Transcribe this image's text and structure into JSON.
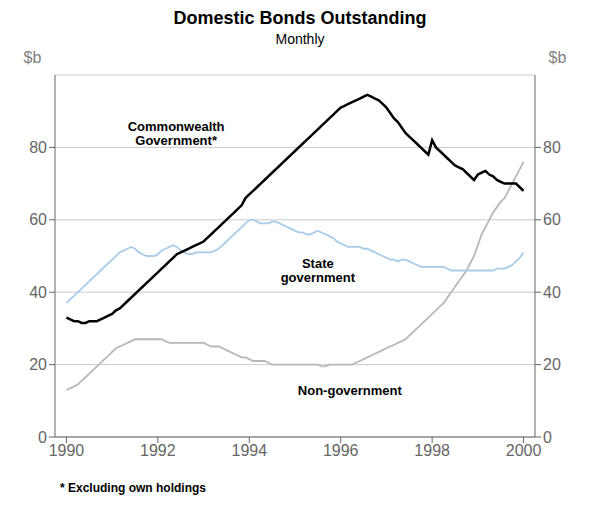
{
  "chart_data": {
    "type": "line",
    "title": "Domestic Bonds Outstanding",
    "subtitle": "Monthly",
    "ylabel": "$b",
    "y2label": "$b",
    "footnote": "* Excluding own holdings",
    "x": [
      1990.0,
      1990.083,
      1990.167,
      1990.25,
      1990.333,
      1990.417,
      1990.5,
      1990.583,
      1990.667,
      1990.75,
      1990.833,
      1990.917,
      1991.0,
      1991.083,
      1991.167,
      1991.25,
      1991.333,
      1991.417,
      1991.5,
      1991.583,
      1991.667,
      1991.75,
      1991.833,
      1991.917,
      1992.0,
      1992.083,
      1992.167,
      1992.25,
      1992.333,
      1992.417,
      1992.5,
      1992.583,
      1992.667,
      1992.75,
      1992.833,
      1992.917,
      1993.0,
      1993.083,
      1993.167,
      1993.25,
      1993.333,
      1993.417,
      1993.5,
      1993.583,
      1993.667,
      1993.75,
      1993.833,
      1993.917,
      1994.0,
      1994.083,
      1994.167,
      1994.25,
      1994.333,
      1994.417,
      1994.5,
      1994.583,
      1994.667,
      1994.75,
      1994.833,
      1994.917,
      1995.0,
      1995.083,
      1995.167,
      1995.25,
      1995.333,
      1995.417,
      1995.5,
      1995.583,
      1995.667,
      1995.75,
      1995.833,
      1995.917,
      1996.0,
      1996.083,
      1996.167,
      1996.25,
      1996.333,
      1996.417,
      1996.5,
      1996.583,
      1996.667,
      1996.75,
      1996.833,
      1996.917,
      1997.0,
      1997.083,
      1997.167,
      1997.25,
      1997.333,
      1997.417,
      1997.5,
      1997.583,
      1997.667,
      1997.75,
      1997.833,
      1997.917,
      1998.0,
      1998.083,
      1998.167,
      1998.25,
      1998.333,
      1998.417,
      1998.5,
      1998.583,
      1998.667,
      1998.75,
      1998.833,
      1998.917,
      1999.0,
      1999.083,
      1999.167,
      1999.25,
      1999.333,
      1999.417,
      1999.5,
      1999.583,
      1999.667,
      1999.75,
      1999.833,
      1999.917,
      2000.0
    ],
    "series": [
      {
        "color": "#b8b8b8",
        "values": [
          13,
          13.5,
          14,
          14.5,
          15.5,
          16.5,
          17.5,
          18.5,
          19.5,
          20.5,
          21.5,
          22.5,
          23.5,
          24.5,
          25,
          25.5,
          26,
          26.5,
          27,
          27,
          27,
          27,
          27,
          27,
          27,
          27,
          26.5,
          26,
          26,
          26,
          26,
          26,
          26,
          26,
          26,
          26,
          26,
          25.5,
          25,
          25,
          25,
          24.5,
          24,
          23.5,
          23,
          22.5,
          22,
          22,
          21.5,
          21,
          21,
          21,
          21,
          20.5,
          20,
          20,
          20,
          20,
          20,
          20,
          20,
          20,
          20,
          20,
          20,
          20,
          20,
          19.5,
          19.5,
          20,
          20,
          20,
          20,
          20,
          20,
          20,
          20.5,
          21,
          21.5,
          22,
          22.5,
          23,
          23.5,
          24,
          24.5,
          25,
          25.5,
          26,
          26.5,
          27,
          28,
          29,
          30,
          31,
          32,
          33,
          34,
          35,
          36,
          37,
          38.5,
          40,
          41.5,
          43,
          44.5,
          46,
          48,
          50,
          53,
          56,
          58,
          60,
          62,
          63.5,
          65,
          66,
          68,
          70,
          72,
          74,
          76
        ]
      },
      {
        "color": "#a8cce8",
        "values": [
          37,
          38,
          39,
          40,
          41,
          42,
          43,
          44,
          45,
          46,
          47,
          48,
          49,
          50,
          51,
          51.5,
          52,
          52.5,
          52,
          51,
          50.5,
          50,
          50,
          50,
          50.5,
          51.5,
          52,
          52.5,
          53,
          52.5,
          51.5,
          51,
          50.5,
          50.5,
          51,
          51,
          51,
          51,
          51,
          51.5,
          52,
          53,
          54,
          55,
          56,
          57,
          58,
          59,
          60,
          60,
          59.5,
          59,
          59,
          59,
          59.5,
          59.5,
          59,
          58.5,
          58,
          57.5,
          57,
          56.5,
          56.5,
          56,
          56,
          56.5,
          57,
          56.5,
          56,
          55.5,
          55,
          54,
          53.5,
          53,
          52.5,
          52.5,
          52.5,
          52.5,
          52,
          52,
          51.5,
          51,
          50.5,
          50,
          49.5,
          49,
          49,
          48.5,
          49,
          49,
          48.5,
          48,
          47.5,
          47,
          47,
          47,
          47,
          47,
          47,
          47,
          46.5,
          46,
          46,
          46,
          46,
          46,
          46,
          46,
          46,
          46,
          46,
          46,
          46,
          46.5,
          46.5,
          46.5,
          47,
          47.5,
          48.5,
          49.5,
          51
        ]
      },
      {
        "color": "#000000",
        "values": [
          33,
          32.5,
          32,
          32,
          31.5,
          31.5,
          32,
          32,
          32,
          32.5,
          33,
          33.5,
          34,
          35,
          35.5,
          36.5,
          37.5,
          38.5,
          39.5,
          40.5,
          41.5,
          42.5,
          43.5,
          44.5,
          45.5,
          46.5,
          47.5,
          48.5,
          49.5,
          50.5,
          51,
          51.5,
          52,
          52.5,
          53,
          53.5,
          54,
          55,
          56,
          57,
          58,
          59,
          60,
          61,
          62,
          63,
          64,
          66,
          67,
          68,
          69,
          70,
          71,
          72,
          73,
          74,
          75,
          76,
          77,
          78,
          79,
          80,
          81,
          82,
          83,
          84,
          85,
          86,
          87,
          88,
          89,
          90,
          91,
          91.5,
          92,
          92.5,
          93,
          93.5,
          94,
          94.5,
          94,
          93.5,
          93,
          92,
          91,
          89.5,
          88,
          87,
          85.5,
          84,
          83,
          82,
          81,
          80,
          79,
          78,
          82,
          80,
          79,
          78,
          77,
          76,
          75,
          74.5,
          74,
          73,
          72,
          71,
          72.5,
          73,
          73.5,
          72.5,
          72,
          71,
          70.5,
          70,
          70,
          70,
          70,
          69,
          68
        ]
      }
    ],
    "xlim": [
      1989.75,
      2000.25
    ],
    "ylim": [
      0,
      100
    ],
    "y2lim": [
      0,
      100
    ],
    "xticks": [
      1990,
      1992,
      1994,
      1996,
      1998,
      2000
    ],
    "yticks": [
      0,
      20,
      40,
      60,
      80
    ],
    "y2ticks": [
      0,
      20,
      40,
      60,
      80
    ],
    "grid": true,
    "annotations": [
      {
        "text": "Commonwealth\nGovernment*",
        "x": 1992.4,
        "y": 84
      },
      {
        "text": "State\ngovernment",
        "x": 1995.5,
        "y": 46
      },
      {
        "text": "Non-government",
        "x": 1996.2,
        "y": 13
      }
    ]
  }
}
